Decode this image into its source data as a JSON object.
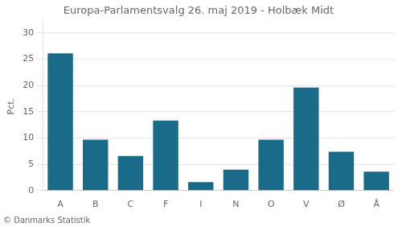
{
  "chart_data": {
    "type": "bar",
    "title": "Europa-Parlamentsvalg 26. maj 2019 - Holbæk Midt",
    "categories": [
      "A",
      "B",
      "C",
      "F",
      "I",
      "N",
      "O",
      "V",
      "Ø",
      "Å"
    ],
    "values": [
      26.1,
      9.7,
      6.6,
      13.3,
      1.6,
      4.0,
      9.7,
      19.6,
      7.4,
      3.6
    ],
    "color": "#1a6b8a",
    "ylabel": "Pct.",
    "footer": "© Danmarks Statistik",
    "ylim": [
      0,
      32
    ],
    "yticks": [
      0,
      5,
      10,
      15,
      20,
      25,
      30
    ],
    "grid": true
  }
}
